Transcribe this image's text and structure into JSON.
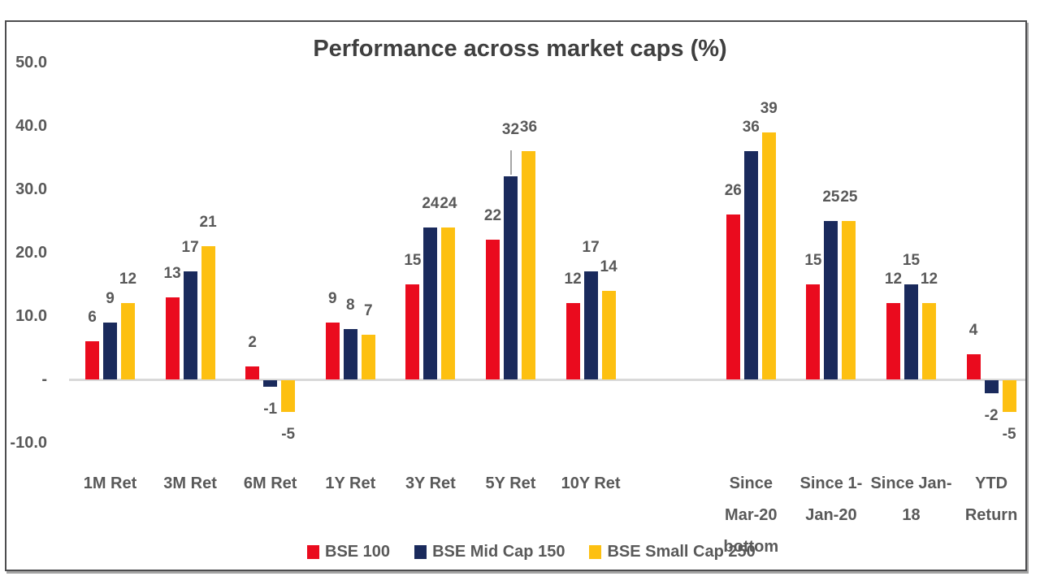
{
  "chart_data": {
    "type": "bar",
    "title": "Performance across market caps (%)",
    "categories": [
      "1M Ret",
      "3M Ret",
      "6M Ret",
      "1Y Ret",
      "3Y Ret",
      "5Y Ret",
      "10Y Ret",
      "",
      "Since Mar-20 bottom",
      "Since 1-Jan-20",
      "Since Jan-18",
      "YTD Return"
    ],
    "category_label_lines": [
      [
        "1M Ret"
      ],
      [
        "3M Ret"
      ],
      [
        "6M Ret"
      ],
      [
        "1Y Ret"
      ],
      [
        "3Y Ret"
      ],
      [
        "5Y Ret"
      ],
      [
        "10Y Ret"
      ],
      [],
      [
        "Since",
        "Mar-20",
        "bottom"
      ],
      [
        "Since 1-",
        "Jan-20"
      ],
      [
        "Since Jan-",
        "18"
      ],
      [
        "YTD",
        "Return"
      ]
    ],
    "series": [
      {
        "name": "BSE 100",
        "color": "#ea0b1e",
        "values": [
          6,
          13,
          2,
          9,
          15,
          22,
          12,
          null,
          26,
          15,
          12,
          4
        ]
      },
      {
        "name": "BSE Mid Cap 150",
        "color": "#1a2a5c",
        "values": [
          9,
          17,
          -1,
          8,
          24,
          32,
          17,
          null,
          36,
          25,
          15,
          -2
        ]
      },
      {
        "name": "BSE Small Cap 250",
        "color": "#fdc011",
        "values": [
          12,
          21,
          -5,
          7,
          24,
          36,
          14,
          null,
          39,
          25,
          12,
          -5
        ]
      }
    ],
    "y_axis": {
      "tick_labels": [
        "50.0",
        "40.0",
        "30.0",
        "20.0",
        "10.0",
        "-",
        "-10.0"
      ],
      "tick_values": [
        50,
        40,
        30,
        20,
        10,
        0,
        -10
      ],
      "ylim": [
        -10,
        50
      ]
    },
    "legend": {
      "position": "bottom",
      "entries": [
        "BSE 100",
        "BSE Mid Cap 150",
        "BSE Small Cap 250"
      ]
    },
    "grid": false,
    "label_leader_line": {
      "series_index": 1,
      "category_index": 5
    },
    "colors": {
      "text": "#595959",
      "title_text": "#3f3f3f",
      "baseline": "#d9d9d9",
      "leader_line": "#a6a6a6",
      "frame_border": "#4d4d4f"
    }
  }
}
